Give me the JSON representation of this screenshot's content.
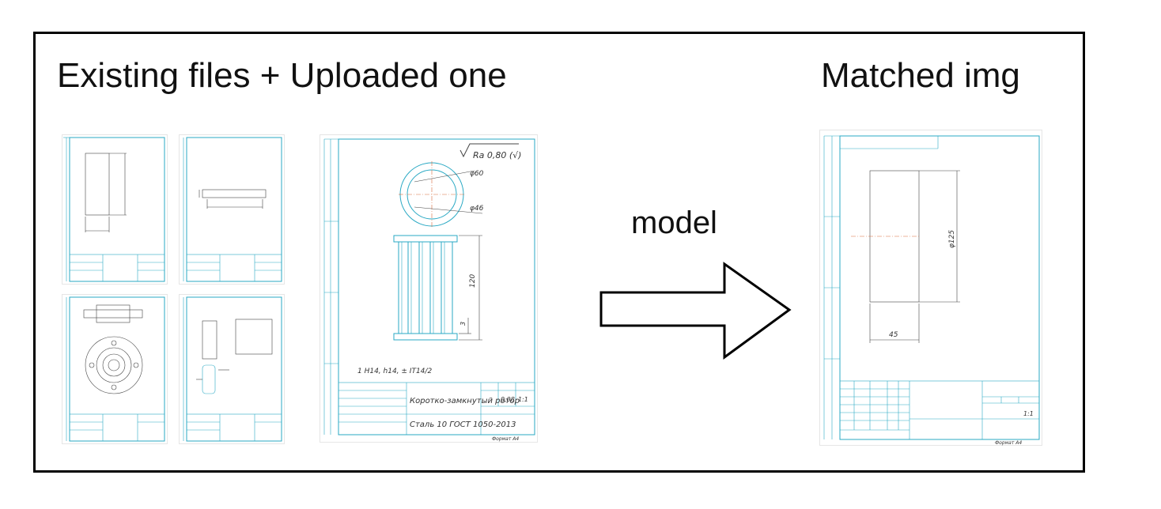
{
  "labels": {
    "left": "Existing files + Uploaded one",
    "right": "Matched img",
    "arrow": "model"
  },
  "uploaded_drawing": {
    "roughness": "Ra 0,80 (√)",
    "diam_outer": "φ60",
    "diam_inner": "φ46",
    "length": "120",
    "small_dim": "3",
    "tolerance": "1 H14, h14, ± IT14/2",
    "title_name": "Коротко-замкнутый ротор",
    "material": "Сталь 10 ГОСТ 1050-2013",
    "mass": "0,08",
    "scale": "1:1",
    "format": "Формат А4"
  },
  "matched_drawing": {
    "diam": "φ125",
    "width": "45",
    "scale": "1:1",
    "format": "Формат А4"
  },
  "colors": {
    "drawing_line": "#2aa9c4",
    "frame": "#000000"
  }
}
